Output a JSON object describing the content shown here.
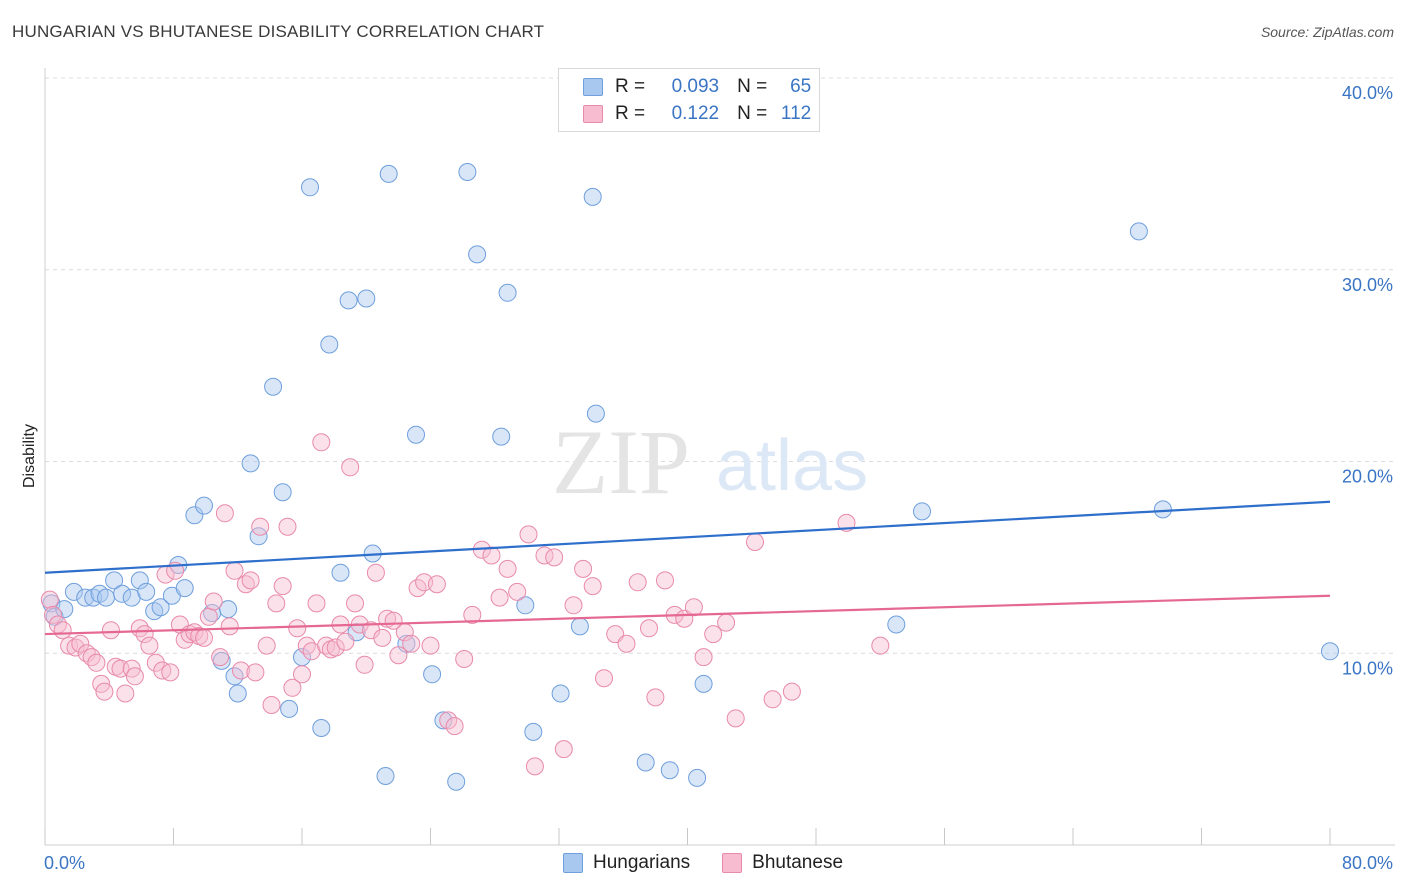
{
  "title": "HUNGARIAN VS BHUTANESE DISABILITY CORRELATION CHART",
  "source": "Source: ZipAtlas.com",
  "watermark": {
    "part1": "ZIP",
    "part2": "atlas"
  },
  "legend": {
    "rows": [
      {
        "r_label": "R =",
        "r_value": "0.093",
        "n_label": "N =",
        "n_value": "65",
        "color": "#a9c8f0",
        "border": "#6f9fdc"
      },
      {
        "r_label": "R =",
        "r_value": "0.122",
        "n_label": "N =",
        "n_value": "112",
        "color": "#f7bcd0",
        "border": "#e88aab"
      }
    ]
  },
  "bottom_legend": [
    {
      "label": "Hungarians",
      "color": "#a9c8f0",
      "border": "#6f9fdc"
    },
    {
      "label": "Bhutanese",
      "color": "#f7bcd0",
      "border": "#e88aab"
    }
  ],
  "chart_data": {
    "type": "scatter",
    "title": "HUNGARIAN VS BHUTANESE DISABILITY CORRELATION CHART",
    "xlabel": "",
    "ylabel": "Disability",
    "xlim": [
      0,
      80
    ],
    "ylim": [
      0,
      40
    ],
    "x_tick_labels": [
      {
        "value": 0,
        "label": "0.0%"
      },
      {
        "value": 80,
        "label": "80.0%"
      }
    ],
    "y_tick_labels": [
      {
        "value": 10,
        "label": "10.0%"
      },
      {
        "value": 20,
        "label": "20.0%"
      },
      {
        "value": 30,
        "label": "30.0%"
      },
      {
        "value": 40,
        "label": "40.0%"
      }
    ],
    "grid": true,
    "legend_position": "top-center",
    "series": [
      {
        "name": "Hungarians",
        "color": "#a9c8f0",
        "edge": "#6f9fdc",
        "line_color": "#2f6fcc",
        "trend": {
          "x": [
            0,
            80
          ],
          "y": [
            14.2,
            17.9
          ]
        },
        "points": [
          [
            0.4,
            12.6
          ],
          [
            0.6,
            11.9
          ],
          [
            1.2,
            12.3
          ],
          [
            1.8,
            13.2
          ],
          [
            2.5,
            12.9
          ],
          [
            3.0,
            12.9
          ],
          [
            3.4,
            13.1
          ],
          [
            3.8,
            12.9
          ],
          [
            4.3,
            13.8
          ],
          [
            4.8,
            13.1
          ],
          [
            5.4,
            12.9
          ],
          [
            5.9,
            13.8
          ],
          [
            6.3,
            13.2
          ],
          [
            6.8,
            12.2
          ],
          [
            7.2,
            12.4
          ],
          [
            7.9,
            13.0
          ],
          [
            8.3,
            14.6
          ],
          [
            8.7,
            13.4
          ],
          [
            9.3,
            17.2
          ],
          [
            9.9,
            17.7
          ],
          [
            10.4,
            12.1
          ],
          [
            11.0,
            9.6
          ],
          [
            11.4,
            12.3
          ],
          [
            11.8,
            8.8
          ],
          [
            12.0,
            7.9
          ],
          [
            12.8,
            19.9
          ],
          [
            13.3,
            16.1
          ],
          [
            14.2,
            23.9
          ],
          [
            14.8,
            18.4
          ],
          [
            15.2,
            7.1
          ],
          [
            16.0,
            9.8
          ],
          [
            16.5,
            34.3
          ],
          [
            17.2,
            6.1
          ],
          [
            17.7,
            26.1
          ],
          [
            18.4,
            14.2
          ],
          [
            18.9,
            28.4
          ],
          [
            19.4,
            11.1
          ],
          [
            20.0,
            28.5
          ],
          [
            20.4,
            15.2
          ],
          [
            21.2,
            3.6
          ],
          [
            21.4,
            35.0
          ],
          [
            22.5,
            10.5
          ],
          [
            23.1,
            21.4
          ],
          [
            24.1,
            8.9
          ],
          [
            24.8,
            6.5
          ],
          [
            25.6,
            3.3
          ],
          [
            26.3,
            35.1
          ],
          [
            26.9,
            30.8
          ],
          [
            28.4,
            21.3
          ],
          [
            28.8,
            28.8
          ],
          [
            29.9,
            12.5
          ],
          [
            30.4,
            5.9
          ],
          [
            32.1,
            7.9
          ],
          [
            33.3,
            11.4
          ],
          [
            34.1,
            33.8
          ],
          [
            34.3,
            22.5
          ],
          [
            37.4,
            4.3
          ],
          [
            38.9,
            3.9
          ],
          [
            40.6,
            3.5
          ],
          [
            41.0,
            8.4
          ],
          [
            53.0,
            11.5
          ],
          [
            54.6,
            17.4
          ],
          [
            68.1,
            32.0
          ],
          [
            69.6,
            17.5
          ],
          [
            80.0,
            10.1
          ]
        ]
      },
      {
        "name": "Bhutanese",
        "color": "#f7bcd0",
        "edge": "#e88aab",
        "line_color": "#e56893",
        "trend": {
          "x": [
            0,
            80
          ],
          "y": [
            11.0,
            13.0
          ]
        },
        "points": [
          [
            0.3,
            12.8
          ],
          [
            0.5,
            12.0
          ],
          [
            0.8,
            11.5
          ],
          [
            1.1,
            11.2
          ],
          [
            1.5,
            10.4
          ],
          [
            1.9,
            10.3
          ],
          [
            2.2,
            10.5
          ],
          [
            2.6,
            10.0
          ],
          [
            2.9,
            9.8
          ],
          [
            3.2,
            9.5
          ],
          [
            3.5,
            8.4
          ],
          [
            3.7,
            8.0
          ],
          [
            4.1,
            11.2
          ],
          [
            4.4,
            9.3
          ],
          [
            4.7,
            9.2
          ],
          [
            5.0,
            7.9
          ],
          [
            5.4,
            9.2
          ],
          [
            5.6,
            8.8
          ],
          [
            5.9,
            11.3
          ],
          [
            6.2,
            11.0
          ],
          [
            6.5,
            10.4
          ],
          [
            6.9,
            9.5
          ],
          [
            7.3,
            9.1
          ],
          [
            7.5,
            14.1
          ],
          [
            7.8,
            9.0
          ],
          [
            8.1,
            14.3
          ],
          [
            8.4,
            11.5
          ],
          [
            8.7,
            10.7
          ],
          [
            9.0,
            11.0
          ],
          [
            9.3,
            11.1
          ],
          [
            9.6,
            10.9
          ],
          [
            9.9,
            10.8
          ],
          [
            10.2,
            11.9
          ],
          [
            10.5,
            12.7
          ],
          [
            10.9,
            9.8
          ],
          [
            11.2,
            17.3
          ],
          [
            11.5,
            11.4
          ],
          [
            11.8,
            14.3
          ],
          [
            12.2,
            9.1
          ],
          [
            12.5,
            13.6
          ],
          [
            12.8,
            13.8
          ],
          [
            13.1,
            9.0
          ],
          [
            13.4,
            16.6
          ],
          [
            13.8,
            10.4
          ],
          [
            14.1,
            7.3
          ],
          [
            14.4,
            12.6
          ],
          [
            14.8,
            13.5
          ],
          [
            15.1,
            16.6
          ],
          [
            15.4,
            8.2
          ],
          [
            15.7,
            11.3
          ],
          [
            16.0,
            8.9
          ],
          [
            16.3,
            10.4
          ],
          [
            16.6,
            10.1
          ],
          [
            16.9,
            12.6
          ],
          [
            17.2,
            21.0
          ],
          [
            17.5,
            10.4
          ],
          [
            17.8,
            10.2
          ],
          [
            18.1,
            10.3
          ],
          [
            18.4,
            11.5
          ],
          [
            18.7,
            10.6
          ],
          [
            19.0,
            19.7
          ],
          [
            19.3,
            12.6
          ],
          [
            19.6,
            11.5
          ],
          [
            19.9,
            9.4
          ],
          [
            20.3,
            11.2
          ],
          [
            20.6,
            14.2
          ],
          [
            21.0,
            10.8
          ],
          [
            21.3,
            11.8
          ],
          [
            21.7,
            11.7
          ],
          [
            22.0,
            9.9
          ],
          [
            22.4,
            11.1
          ],
          [
            22.8,
            10.5
          ],
          [
            23.2,
            13.4
          ],
          [
            23.6,
            13.7
          ],
          [
            24.0,
            10.4
          ],
          [
            24.4,
            13.6
          ],
          [
            25.1,
            6.5
          ],
          [
            25.5,
            6.2
          ],
          [
            26.1,
            9.7
          ],
          [
            26.6,
            12.0
          ],
          [
            27.2,
            15.4
          ],
          [
            27.8,
            15.1
          ],
          [
            28.3,
            12.9
          ],
          [
            28.8,
            14.4
          ],
          [
            29.4,
            13.2
          ],
          [
            30.1,
            16.2
          ],
          [
            30.5,
            4.1
          ],
          [
            31.1,
            15.1
          ],
          [
            31.7,
            15.0
          ],
          [
            32.3,
            5.0
          ],
          [
            32.9,
            12.5
          ],
          [
            33.5,
            14.4
          ],
          [
            34.1,
            13.5
          ],
          [
            34.8,
            8.7
          ],
          [
            35.5,
            11.0
          ],
          [
            36.2,
            10.5
          ],
          [
            36.9,
            13.7
          ],
          [
            37.6,
            11.3
          ],
          [
            38.0,
            7.7
          ],
          [
            38.6,
            13.8
          ],
          [
            39.2,
            12.0
          ],
          [
            39.8,
            11.8
          ],
          [
            40.4,
            12.4
          ],
          [
            41.0,
            9.8
          ],
          [
            41.6,
            11.0
          ],
          [
            42.4,
            11.6
          ],
          [
            43.0,
            6.6
          ],
          [
            44.2,
            15.8
          ],
          [
            45.3,
            7.6
          ],
          [
            46.5,
            8.0
          ],
          [
            49.9,
            16.8
          ],
          [
            52.0,
            10.4
          ]
        ]
      }
    ]
  }
}
